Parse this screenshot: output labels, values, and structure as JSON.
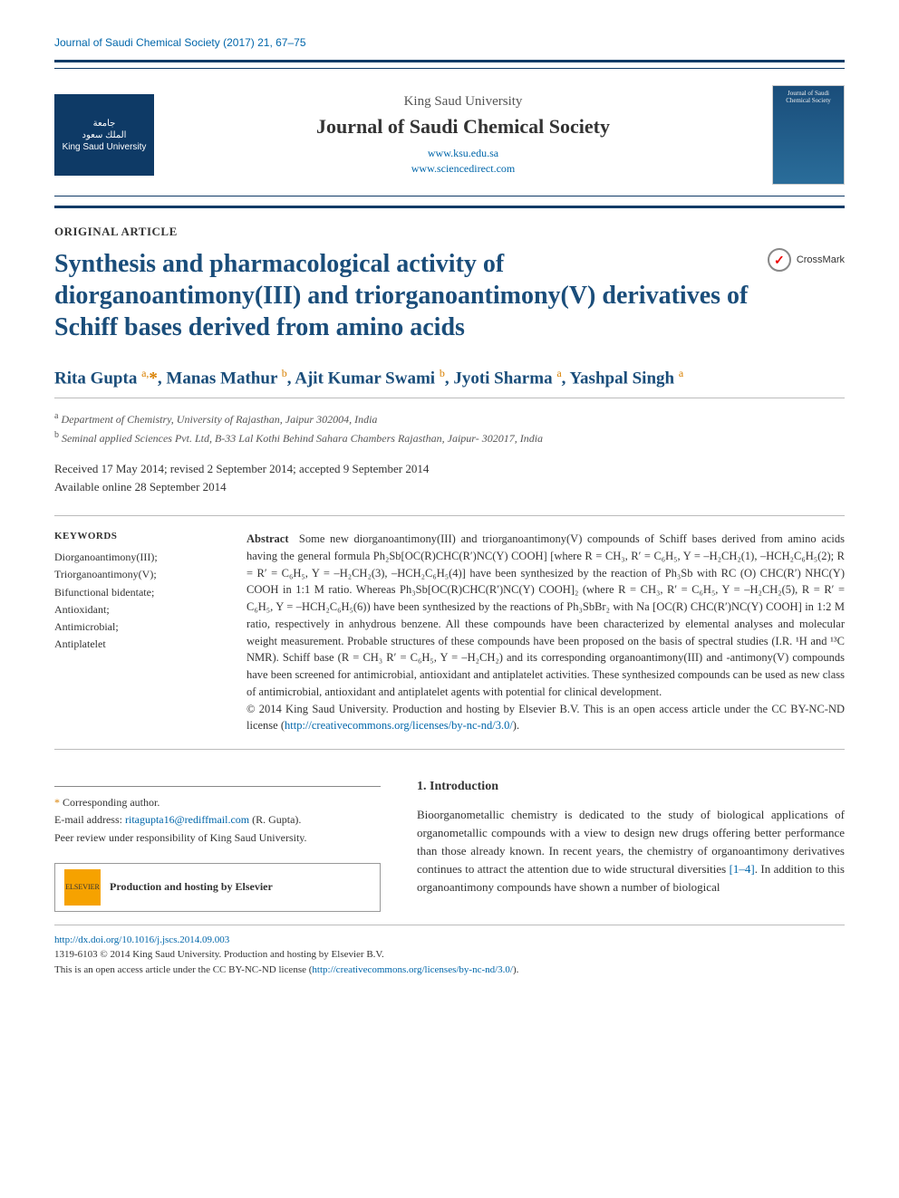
{
  "colors": {
    "link": "#0066aa",
    "journal_accent": "#0e3a66",
    "title": "#1a4d7a",
    "superscript": "#d98000",
    "background": "#ffffff",
    "text": "#333333",
    "rule_light": "#bbbbbb"
  },
  "typography": {
    "title_fontsize_pt": 21,
    "journal_fontsize_pt": 16,
    "authors_fontsize_pt": 14,
    "body_fontsize_pt": 10,
    "abstract_fontsize_pt": 9.5
  },
  "header": {
    "citation": "Journal of Saudi Chemical Society (2017) 21, 67–75"
  },
  "masthead": {
    "logo_lines": "جامعة\nالملك سعود\nKing Saud University",
    "university": "King Saud University",
    "journal": "Journal of Saudi Chemical Society",
    "link1": "www.ksu.edu.sa",
    "link2": "www.sciencedirect.com",
    "cover_label": "Journal of Saudi\nChemical Society"
  },
  "article": {
    "section_label": "ORIGINAL ARTICLE",
    "title": "Synthesis and pharmacological activity of diorganoantimony(III) and triorganoantimony(V) derivatives of Schiff bases derived from amino acids",
    "crossmark": "CrossMark"
  },
  "authors": {
    "a1": "Rita Gupta",
    "a1_aff": "a,",
    "a1_star": "*",
    "a2": "Manas Mathur",
    "a2_aff": "b",
    "a3": "Ajit Kumar Swami",
    "a3_aff": "b",
    "a4": "Jyoti Sharma",
    "a4_aff": "a",
    "a5": "Yashpal Singh",
    "a5_aff": "a"
  },
  "affiliations": {
    "a_sup": "a",
    "a": "Department of Chemistry, University of Rajasthan, Jaipur 302004, India",
    "b_sup": "b",
    "b": "Seminal applied Sciences Pvt. Ltd, B-33 Lal Kothi Behind Sahara Chambers Rajasthan, Jaipur- 302017, India"
  },
  "dates": {
    "line1": "Received 17 May 2014; revised 2 September 2014; accepted 9 September 2014",
    "line2": "Available online 28 September 2014"
  },
  "keywords": {
    "heading": "KEYWORDS",
    "items": "Diorganoantimony(III);\nTriorganoantimony(V);\nBifunctional bidentate;\nAntioxidant;\nAntimicrobial;\nAntiplatelet"
  },
  "abstract": {
    "label": "Abstract",
    "body": "Some new diorganoantimony(III) and triorganoantimony(V) compounds of Schiff bases derived from amino acids having the general formula Ph₂Sb[OC(R)CHC(R′)NC(Y) COOH] [where R = CH₃, R′ = C₆H₅, Y = –H₂CH₂(1), –HCH₂C₆H₅(2); R = R′ = C₆H₅, Y = –H₂CH₂(3), –HCH₂C₆H₅(4)] have been synthesized by the reaction of Ph₃Sb with RC (O) CHC(R′) NHC(Y) COOH in 1:1 M ratio. Whereas Ph₃Sb[OC(R)CHC(R′)NC(Y) COOH]₂ (where R = CH₃, R′ = C₆H₅, Y = –H₂CH₂(5), R = R′ = C₆H₅, Y = –HCH₂C₆H₅(6)) have been synthesized by the reactions of Ph₃SbBr₂ with Na [OC(R) CHC(R′)NC(Y) COOH] in 1:2 M ratio, respectively in anhydrous benzene. All these compounds have been characterized by elemental analyses and molecular weight measurement. Probable structures of these compounds have been proposed on the basis of spectral studies (I.R. ¹H and ¹³C NMR). Schiff base (R = CH₃ R′ = C₆H₅, Y = –H₂CH₂) and its corresponding organoantimony(III) and -antimony(V) compounds have been screened for antimicrobial, antioxidant and antiplatelet activities. These synthesized compounds can be used as new class of antimicrobial, antioxidant and antiplatelet agents with potential for clinical development.",
    "copyright": "© 2014 King Saud University. Production and hosting by Elsevier B.V. This is an open access article under the CC BY-NC-ND license (",
    "license_url": "http://creativecommons.org/licenses/by-nc-nd/3.0/",
    "copyright_end": ")."
  },
  "intro": {
    "heading": "1. Introduction",
    "body": "Bioorganometallic chemistry is dedicated to the study of biological applications of organometallic compounds with a view to design new drugs offering better performance than those already known. In recent years, the chemistry of organoantimony derivatives continues to attract the attention due to wide structural diversities ",
    "ref": "[1–4]",
    "body2": ". In addition to this organoantimony compounds have shown a number of biological"
  },
  "corresponding": {
    "star": "*",
    "label": "Corresponding author.",
    "email_label": "E-mail address: ",
    "email": "ritagupta16@rediffmail.com",
    "email_suffix": " (R. Gupta).",
    "peer_review": "Peer review under responsibility of King Saud University."
  },
  "elsevier": {
    "logo": "ELSEVIER",
    "text": "Production and hosting by Elsevier"
  },
  "footer": {
    "doi": "http://dx.doi.org/10.1016/j.jscs.2014.09.003",
    "line1": "1319-6103 © 2014 King Saud University. Production and hosting by Elsevier B.V.",
    "line2": "This is an open access article under the CC BY-NC-ND license (",
    "license_url": "http://creativecommons.org/licenses/by-nc-nd/3.0/",
    "line2_end": ")."
  }
}
